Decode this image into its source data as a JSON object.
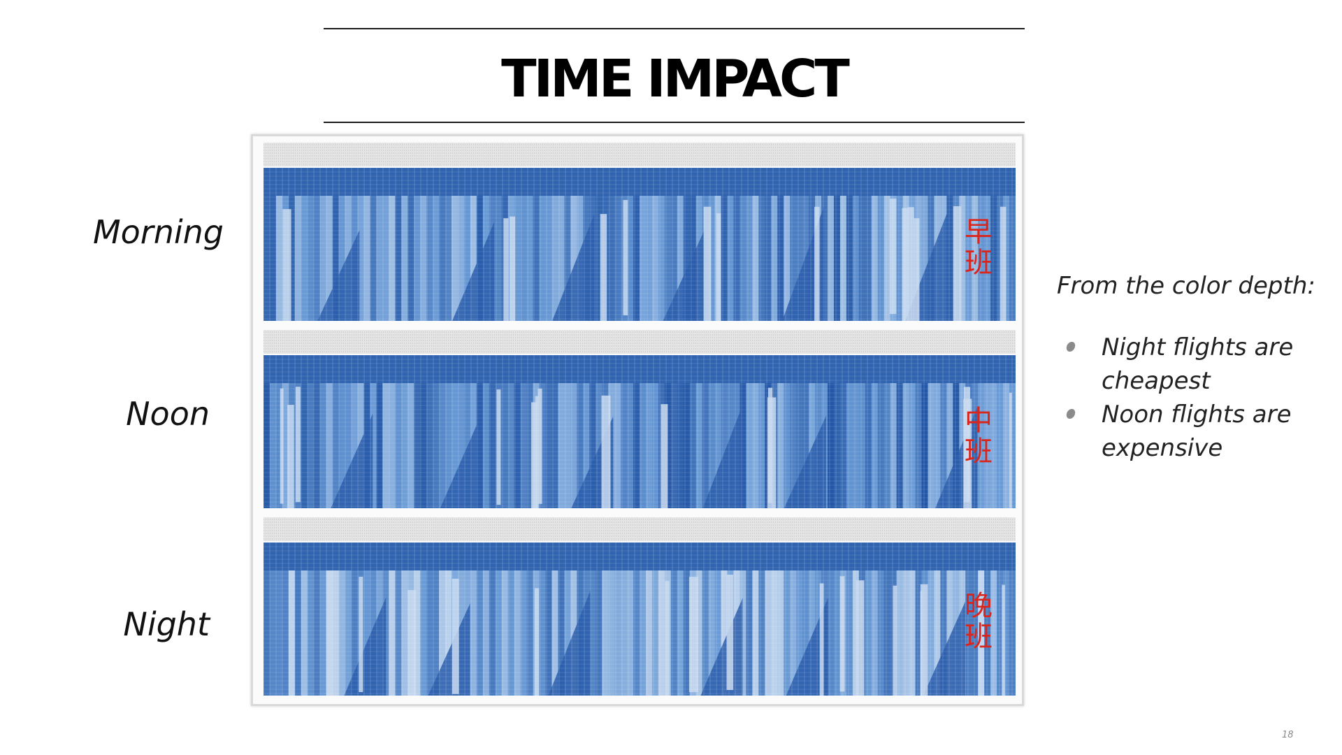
{
  "slide": {
    "title": "TIME IMPACT",
    "page_number": "18"
  },
  "rows": [
    {
      "label": "Morning",
      "tag": "早班"
    },
    {
      "label": "Noon",
      "tag": "中班"
    },
    {
      "label": "Night",
      "tag": "晚班"
    }
  ],
  "notes": {
    "heading": "From the color depth:",
    "bullets": [
      "Night flights are cheapest",
      "Noon flights are expensive"
    ]
  },
  "colors": {
    "heatmap_dark": "#2356a6",
    "heatmap_mid": "#6a9bd6",
    "heatmap_light": "#dbe7f5",
    "tag_red": "#d9251c"
  },
  "chart_data": {
    "type": "heatmap",
    "panels": [
      "Morning",
      "Noon",
      "Night"
    ],
    "color_scale": "blues",
    "summary_intensity": {
      "Morning": 0.6,
      "Noon": 0.68,
      "Night": 0.45
    }
  }
}
